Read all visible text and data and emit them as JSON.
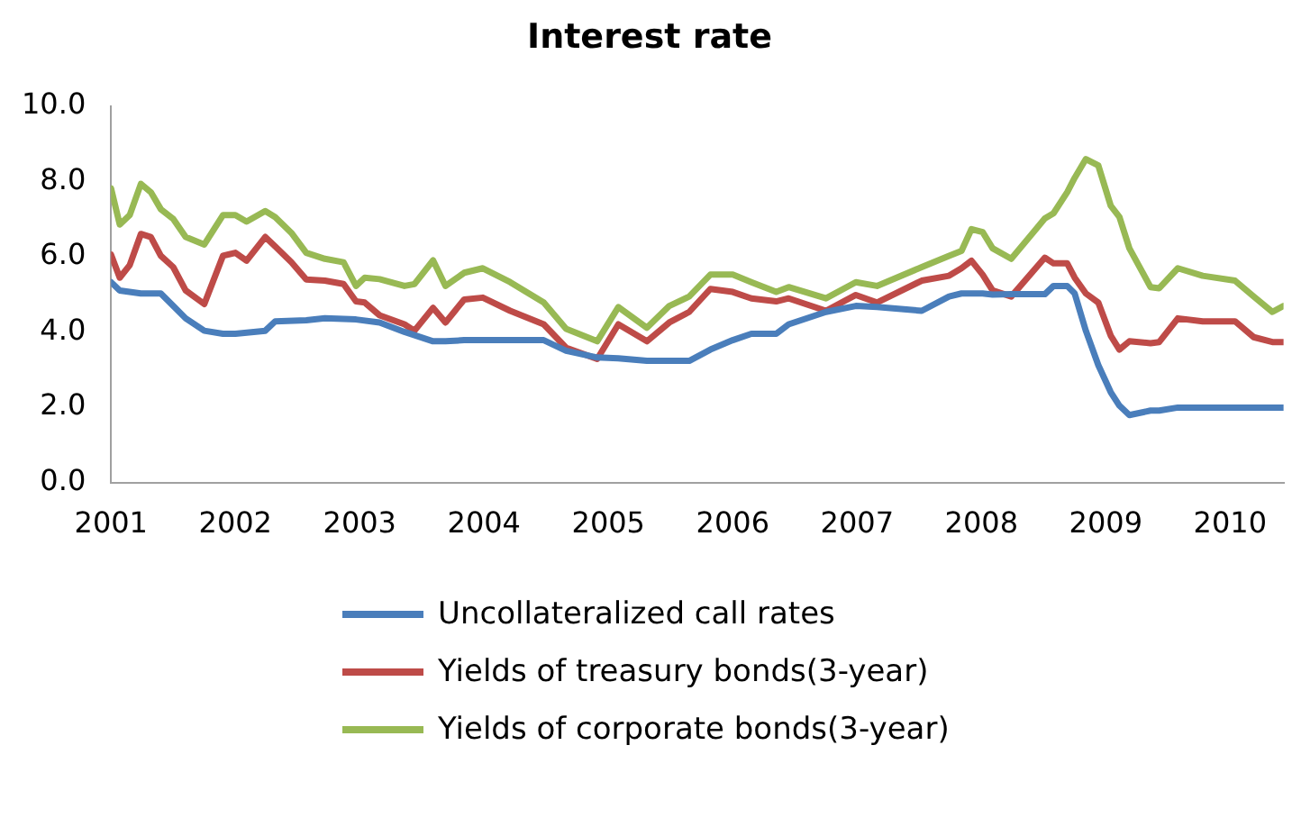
{
  "chart_data": {
    "type": "line",
    "title": "Interest rate",
    "xlim": [
      2001,
      2010.43
    ],
    "xticks": [
      2001,
      2002,
      2003,
      2004,
      2005,
      2006,
      2007,
      2008,
      2009,
      2010
    ],
    "ylim": [
      0,
      10
    ],
    "yticks": [
      {
        "value": 0,
        "label": "0.0"
      },
      {
        "value": 2,
        "label": "2.0"
      },
      {
        "value": 4,
        "label": "4.0"
      },
      {
        "value": 6,
        "label": "6.0"
      },
      {
        "value": 8,
        "label": "8.0"
      },
      {
        "value": 10,
        "label": "10.0"
      }
    ],
    "grid": false,
    "legend": "bottom",
    "marker": "none",
    "line_style": "solid",
    "series": [
      {
        "name": "Uncollateralized call rates",
        "color": "#4a7ebb",
        "x": [
          2001,
          2001.07,
          2001.24,
          2001.4,
          2001.5,
          2001.6,
          2001.75,
          2001.9,
          2002,
          2002.24,
          2002.32,
          2002.57,
          2002.72,
          2002.97,
          2003.16,
          2003.36,
          2003.59,
          2003.69,
          2003.84,
          2003.99,
          2004.21,
          2004.48,
          2004.66,
          2004.91,
          2005.08,
          2005.31,
          2005.49,
          2005.65,
          2005.82,
          2006,
          2006.15,
          2006.35,
          2006.45,
          2006.75,
          2006.99,
          2007.16,
          2007.52,
          2007.74,
          2007.84,
          2008.01,
          2008.09,
          2008.24,
          2008.51,
          2008.58,
          2008.69,
          2008.75,
          2008.84,
          2008.94,
          2009.04,
          2009.11,
          2009.19,
          2009.36,
          2009.43,
          2009.58,
          2009.78,
          2010.19,
          2010.43
        ],
        "values": [
          5.32,
          5.1,
          5.02,
          5.02,
          4.69,
          4.36,
          4.03,
          3.95,
          3.95,
          4.03,
          4.28,
          4.31,
          4.36,
          4.33,
          4.25,
          4,
          3.75,
          3.75,
          3.78,
          3.78,
          3.78,
          3.78,
          3.5,
          3.32,
          3.3,
          3.23,
          3.23,
          3.23,
          3.53,
          3.78,
          3.95,
          3.95,
          4.2,
          4.53,
          4.69,
          4.66,
          4.56,
          4.94,
          5.02,
          5.02,
          4.99,
          5,
          5,
          5.22,
          5.22,
          5.02,
          4.03,
          3.12,
          2.4,
          2.04,
          1.79,
          1.91,
          1.91,
          1.99,
          1.99,
          1.99,
          1.99
        ]
      },
      {
        "name": "Yields of treasury bonds(3-year)",
        "color": "#be4b48",
        "x": [
          2001,
          2001.07,
          2001.15,
          2001.24,
          2001.32,
          2001.4,
          2001.5,
          2001.6,
          2001.75,
          2001.9,
          2002,
          2002.09,
          2002.24,
          2002.32,
          2002.45,
          2002.57,
          2002.72,
          2002.87,
          2002.97,
          2003.04,
          2003.16,
          2003.36,
          2003.44,
          2003.59,
          2003.69,
          2003.84,
          2003.99,
          2004.21,
          2004.48,
          2004.66,
          2004.91,
          2005.08,
          2005.31,
          2005.49,
          2005.65,
          2005.82,
          2006,
          2006.15,
          2006.35,
          2006.45,
          2006.75,
          2006.99,
          2007.16,
          2007.52,
          2007.74,
          2007.84,
          2007.92,
          2008.01,
          2008.09,
          2008.24,
          2008.51,
          2008.58,
          2008.69,
          2008.75,
          2008.84,
          2008.94,
          2009.04,
          2009.11,
          2009.19,
          2009.36,
          2009.43,
          2009.58,
          2009.78,
          2010.04,
          2010.19,
          2010.34,
          2010.43
        ],
        "values": [
          6.05,
          5.44,
          5.77,
          6.6,
          6.52,
          6.02,
          5.72,
          5.1,
          4.74,
          6.02,
          6.1,
          5.89,
          6.52,
          6.27,
          5.85,
          5.39,
          5.36,
          5.27,
          4.81,
          4.78,
          4.44,
          4.2,
          4.03,
          4.64,
          4.25,
          4.86,
          4.91,
          4.56,
          4.2,
          3.58,
          3.28,
          4.2,
          3.75,
          4.25,
          4.53,
          5.14,
          5.06,
          4.89,
          4.81,
          4.89,
          4.56,
          4.98,
          4.78,
          5.36,
          5.49,
          5.69,
          5.89,
          5.52,
          5.1,
          4.94,
          5.97,
          5.82,
          5.82,
          5.44,
          5.02,
          4.78,
          3.9,
          3.53,
          3.75,
          3.7,
          3.73,
          4.36,
          4.28,
          4.28,
          3.86,
          3.73,
          3.73
        ]
      },
      {
        "name": "Yields of corporate bonds(3-year)",
        "color": "#98b954",
        "x": [
          2001,
          2001.07,
          2001.15,
          2001.24,
          2001.32,
          2001.4,
          2001.5,
          2001.6,
          2001.75,
          2001.9,
          2002,
          2002.09,
          2002.24,
          2002.32,
          2002.45,
          2002.57,
          2002.72,
          2002.87,
          2002.97,
          2003.04,
          2003.16,
          2003.36,
          2003.44,
          2003.59,
          2003.69,
          2003.84,
          2003.99,
          2004.21,
          2004.48,
          2004.66,
          2004.91,
          2005.08,
          2005.31,
          2005.49,
          2005.65,
          2005.82,
          2006,
          2006.15,
          2006.35,
          2006.45,
          2006.75,
          2006.99,
          2007.16,
          2007.52,
          2007.74,
          2007.84,
          2007.92,
          2008.01,
          2008.09,
          2008.24,
          2008.51,
          2008.58,
          2008.69,
          2008.75,
          2008.84,
          2008.94,
          2009.04,
          2009.11,
          2009.19,
          2009.36,
          2009.43,
          2009.58,
          2009.78,
          2010.04,
          2010.19,
          2010.34,
          2010.43
        ],
        "values": [
          7.81,
          6.85,
          7.1,
          7.93,
          7.71,
          7.26,
          7,
          6.52,
          6.32,
          7.1,
          7.1,
          6.93,
          7.21,
          7.05,
          6.63,
          6.1,
          5.94,
          5.85,
          5.22,
          5.44,
          5.4,
          5.22,
          5.27,
          5.9,
          5.22,
          5.57,
          5.69,
          5.32,
          4.78,
          4.08,
          3.75,
          4.66,
          4.11,
          4.69,
          4.94,
          5.52,
          5.52,
          5.32,
          5.06,
          5.19,
          4.89,
          5.32,
          5.22,
          5.72,
          6.02,
          6.15,
          6.73,
          6.65,
          6.22,
          5.94,
          7.01,
          7.15,
          7.71,
          8.09,
          8.59,
          8.42,
          7.35,
          7.05,
          6.22,
          5.19,
          5.16,
          5.69,
          5.49,
          5.36,
          4.94,
          4.53,
          4.69
        ]
      }
    ]
  }
}
